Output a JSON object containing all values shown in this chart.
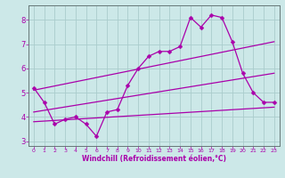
{
  "background_color": "#cce8e8",
  "grid_color": "#aacccc",
  "line_color": "#aa00aa",
  "xlim": [
    -0.5,
    23.5
  ],
  "ylim": [
    2.8,
    8.6
  ],
  "xlabel": "Windchill (Refroidissement éolien,°C)",
  "yticks": [
    3,
    4,
    5,
    6,
    7,
    8
  ],
  "xticks": [
    0,
    1,
    2,
    3,
    4,
    5,
    6,
    7,
    8,
    9,
    10,
    11,
    12,
    13,
    14,
    15,
    16,
    17,
    18,
    19,
    20,
    21,
    22,
    23
  ],
  "series1_x": [
    0,
    1,
    2,
    3,
    4,
    5,
    6,
    7,
    8,
    9,
    10,
    11,
    12,
    13,
    14,
    15,
    16,
    17,
    18,
    19,
    20,
    21,
    22,
    23
  ],
  "series1_y": [
    5.2,
    4.6,
    3.7,
    3.9,
    4.0,
    3.7,
    3.2,
    4.2,
    4.3,
    5.3,
    6.0,
    6.5,
    6.7,
    6.7,
    6.9,
    8.1,
    7.7,
    8.2,
    8.1,
    7.1,
    5.8,
    5.0,
    4.6,
    4.6
  ],
  "series2_x": [
    0,
    23
  ],
  "series2_y": [
    4.2,
    5.8
  ],
  "series3_x": [
    0,
    23
  ],
  "series3_y": [
    5.1,
    7.1
  ],
  "series4_x": [
    0,
    23
  ],
  "series4_y": [
    3.8,
    4.4
  ],
  "marker_size": 2.5,
  "line_width": 0.9,
  "xlabel_fontsize": 5.5,
  "ytick_fontsize": 6,
  "xtick_fontsize": 4.5
}
